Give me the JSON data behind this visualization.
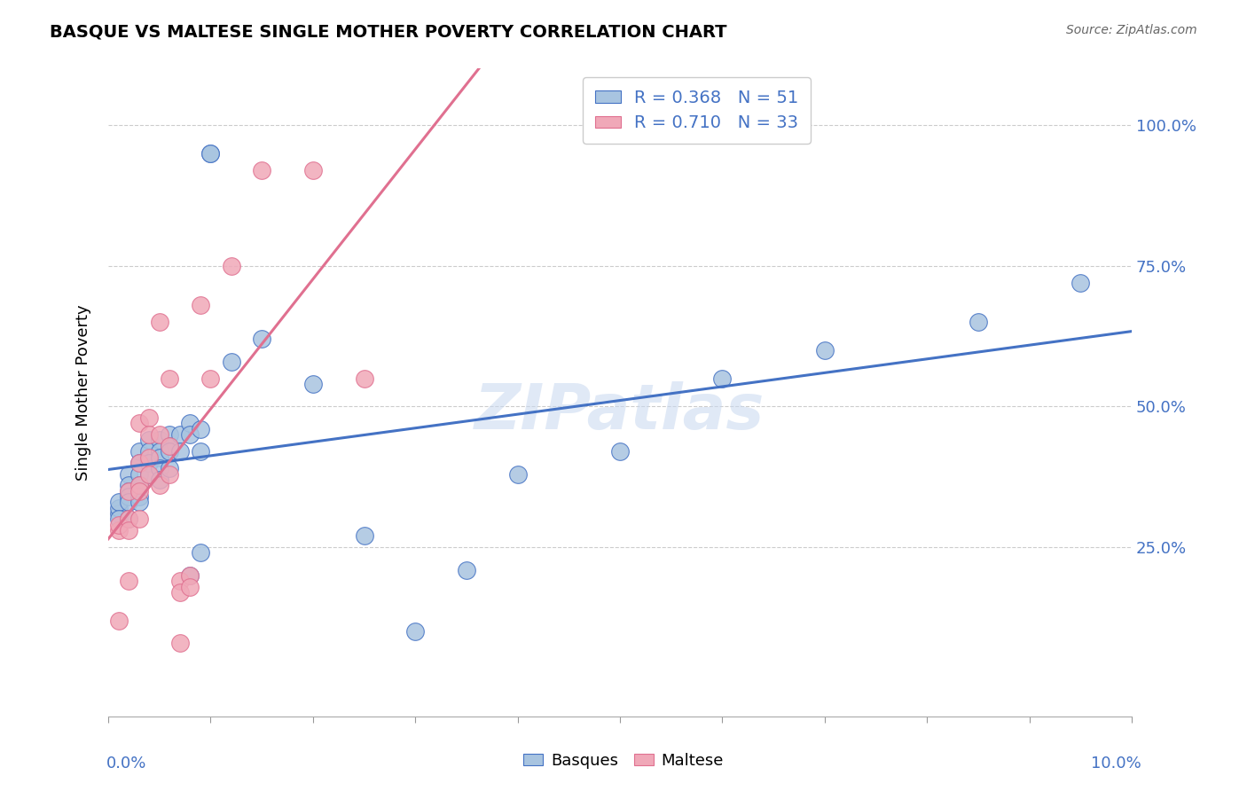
{
  "title": "BASQUE VS MALTESE SINGLE MOTHER POVERTY CORRELATION CHART",
  "source": "Source: ZipAtlas.com",
  "ylabel": "Single Mother Poverty",
  "yticks": [
    "25.0%",
    "50.0%",
    "75.0%",
    "100.0%"
  ],
  "ytick_vals": [
    0.25,
    0.5,
    0.75,
    1.0
  ],
  "xlim": [
    0.0,
    0.1
  ],
  "ylim": [
    -0.05,
    1.1
  ],
  "basque_color": "#a8c4e0",
  "maltese_color": "#f0a8b8",
  "basque_line_color": "#4472c4",
  "maltese_line_color": "#e07090",
  "legend_text_color": "#4472c4",
  "axis_color": "#4472c4",
  "watermark": "ZIPatlas",
  "R_basque": 0.368,
  "N_basque": 51,
  "R_maltese": 0.71,
  "N_maltese": 33,
  "basque_x": [
    0.001,
    0.001,
    0.001,
    0.001,
    0.002,
    0.002,
    0.002,
    0.002,
    0.002,
    0.002,
    0.003,
    0.003,
    0.003,
    0.003,
    0.003,
    0.003,
    0.004,
    0.004,
    0.004,
    0.004,
    0.005,
    0.005,
    0.005,
    0.005,
    0.005,
    0.006,
    0.006,
    0.006,
    0.006,
    0.007,
    0.007,
    0.008,
    0.008,
    0.008,
    0.009,
    0.009,
    0.009,
    0.01,
    0.01,
    0.012,
    0.015,
    0.02,
    0.025,
    0.03,
    0.035,
    0.04,
    0.05,
    0.06,
    0.07,
    0.085,
    0.095
  ],
  "basque_y": [
    0.31,
    0.32,
    0.33,
    0.3,
    0.38,
    0.36,
    0.35,
    0.34,
    0.33,
    0.3,
    0.42,
    0.4,
    0.38,
    0.36,
    0.34,
    0.33,
    0.44,
    0.42,
    0.4,
    0.38,
    0.44,
    0.42,
    0.41,
    0.39,
    0.37,
    0.45,
    0.43,
    0.42,
    0.39,
    0.45,
    0.42,
    0.47,
    0.45,
    0.2,
    0.46,
    0.42,
    0.24,
    0.95,
    0.95,
    0.58,
    0.62,
    0.54,
    0.27,
    0.1,
    0.21,
    0.38,
    0.42,
    0.55,
    0.6,
    0.65,
    0.72
  ],
  "maltese_x": [
    0.001,
    0.001,
    0.001,
    0.002,
    0.002,
    0.002,
    0.002,
    0.003,
    0.003,
    0.003,
    0.003,
    0.003,
    0.004,
    0.004,
    0.004,
    0.004,
    0.005,
    0.005,
    0.005,
    0.006,
    0.006,
    0.006,
    0.007,
    0.007,
    0.007,
    0.008,
    0.008,
    0.009,
    0.01,
    0.012,
    0.015,
    0.02,
    0.025
  ],
  "maltese_y": [
    0.28,
    0.29,
    0.12,
    0.35,
    0.3,
    0.28,
    0.19,
    0.47,
    0.4,
    0.36,
    0.35,
    0.3,
    0.48,
    0.45,
    0.41,
    0.38,
    0.65,
    0.45,
    0.36,
    0.55,
    0.43,
    0.38,
    0.19,
    0.17,
    0.08,
    0.2,
    0.18,
    0.68,
    0.55,
    0.75,
    0.92,
    0.92,
    0.55
  ]
}
